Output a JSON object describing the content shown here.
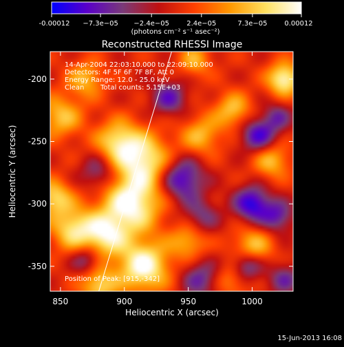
{
  "colorbar": {
    "ticks": [
      "-0.00012",
      "−7.3e−05",
      "−2.4e−05",
      "2.4e−05",
      "7.3e−05",
      "0.00012"
    ],
    "tick_values": [
      -0.00012,
      -7.3e-05,
      -2.4e-05,
      2.4e-05,
      7.3e-05,
      0.00012
    ],
    "range": [
      -0.00012,
      0.00012
    ],
    "units": "(photons cm⁻² s⁻¹ asec⁻²)",
    "stops": [
      "#0000ff",
      "#5a00c8",
      "#7a3a78",
      "#c01010",
      "#ff4000",
      "#ff9800",
      "#ffe060",
      "#ffffff"
    ]
  },
  "chart_data": {
    "type": "heatmap",
    "title": "Reconstructed RHESSI Image",
    "xlabel": "Heliocentric X (arcsec)",
    "ylabel": "Heliocentric Y (arcsec)",
    "xlim": [
      842,
      1032
    ],
    "ylim": [
      -370,
      -178
    ],
    "xticks": [
      850,
      900,
      950,
      1000
    ],
    "yticks": [
      -200,
      -250,
      -300,
      -350
    ],
    "limb_line": [
      [
        880,
        -370
      ],
      [
        937,
        -178
      ]
    ],
    "blobs": [
      {
        "x": 905,
        "y": -300,
        "v": 1.0,
        "s": 16
      },
      {
        "x": 915,
        "y": -350,
        "v": 1.0,
        "s": 14
      },
      {
        "x": 885,
        "y": -325,
        "v": 0.8,
        "s": 12
      },
      {
        "x": 915,
        "y": -265,
        "v": 0.85,
        "s": 15
      },
      {
        "x": 895,
        "y": -250,
        "v": 0.7,
        "s": 12
      },
      {
        "x": 860,
        "y": -320,
        "v": 0.75,
        "s": 12
      },
      {
        "x": 845,
        "y": -295,
        "v": 0.7,
        "s": 10
      },
      {
        "x": 850,
        "y": -230,
        "v": 0.6,
        "s": 12
      },
      {
        "x": 870,
        "y": -200,
        "v": 0.55,
        "s": 10
      },
      {
        "x": 960,
        "y": -245,
        "v": 0.55,
        "s": 11
      },
      {
        "x": 985,
        "y": -225,
        "v": 0.6,
        "s": 10
      },
      {
        "x": 1025,
        "y": -200,
        "v": 0.95,
        "s": 9
      },
      {
        "x": 1015,
        "y": -265,
        "v": 0.6,
        "s": 10
      },
      {
        "x": 950,
        "y": -330,
        "v": 0.55,
        "s": 10
      },
      {
        "x": 1000,
        "y": -335,
        "v": 0.65,
        "s": 11
      },
      {
        "x": 955,
        "y": -185,
        "v": 0.5,
        "s": 9
      },
      {
        "x": 985,
        "y": -360,
        "v": 0.5,
        "s": 10
      },
      {
        "x": 880,
        "y": -365,
        "v": 0.7,
        "s": 10
      },
      {
        "x": 1000,
        "y": -300,
        "v": -0.85,
        "s": 10
      },
      {
        "x": 995,
        "y": -350,
        "v": -0.8,
        "s": 9
      },
      {
        "x": 1005,
        "y": -245,
        "v": -0.75,
        "s": 10
      },
      {
        "x": 945,
        "y": -280,
        "v": -0.8,
        "s": 12
      },
      {
        "x": 960,
        "y": -360,
        "v": -0.55,
        "s": 11
      },
      {
        "x": 935,
        "y": -215,
        "v": -0.6,
        "s": 10
      },
      {
        "x": 1020,
        "y": -310,
        "v": -0.6,
        "s": 9
      },
      {
        "x": 880,
        "y": -275,
        "v": -0.5,
        "s": 10
      },
      {
        "x": 960,
        "y": -310,
        "v": -0.45,
        "s": 10
      },
      {
        "x": 870,
        "y": -345,
        "v": -0.5,
        "s": 8
      },
      {
        "x": 1025,
        "y": -360,
        "v": -0.5,
        "s": 9
      },
      {
        "x": 1020,
        "y": -230,
        "v": -0.45,
        "s": 8
      }
    ]
  },
  "info": {
    "time": "14-Apr-2004 22:03:10.000 to 22:09:10.000",
    "detectors": "Detectors: 4F 5F 6F 7F 8F, Att 0",
    "energy": "Energy Range: 12.0 - 25.0 keV",
    "method": "Clean",
    "counts": "Total counts: 5.15E+03",
    "position": "Position of Peak: [915,-342]"
  },
  "timestamp": "15-Jun-2013 16:08"
}
